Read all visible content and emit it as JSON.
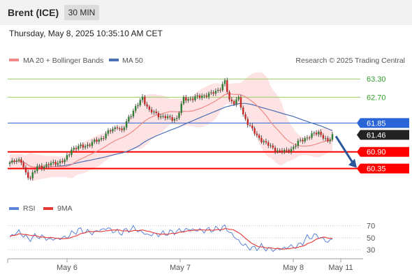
{
  "header": {
    "instrument": "Brent (ICE)",
    "timeframe": "30 MIN",
    "datetime": "Thursday, May 8, 2025 10:35:10 AM CET"
  },
  "legend": {
    "ma20_label": "MA 20 + Bollinger Bands",
    "ma50_label": "MA 50",
    "credit": "Research © 2025 Trading Central",
    "rsi_label": "RSI",
    "rsi_ma_label": "9MA"
  },
  "colors": {
    "bollinger_fill": "#fde3e3",
    "ma20": "#f08a8a",
    "ma50": "#4a6fb5",
    "candle_up": "#2e7d32",
    "candle_down": "#c62828",
    "resistance_level": "#9ccc65",
    "resistance_text": "#33a02c",
    "pivot": "#2965d8",
    "support": "#ff0000",
    "current_tag": "#222222",
    "arrow": "#2b579a",
    "rsi": "#5b84d6",
    "rsi_ma": "#e53935"
  },
  "chart_data": [
    {
      "type": "candlestick",
      "title": "Brent (ICE) 30 MIN",
      "ylim": [
        59.4,
        63.65
      ],
      "x_ticks": [
        "May 6",
        "May 7",
        "May 8",
        "May 11"
      ],
      "grid": false,
      "levels": [
        {
          "value": 63.3,
          "label": "63.30",
          "kind": "resistance"
        },
        {
          "value": 62.7,
          "label": "62.70",
          "kind": "resistance"
        },
        {
          "value": 61.85,
          "label": "61.85",
          "kind": "pivot"
        },
        {
          "value": 60.9,
          "label": "60.90",
          "kind": "support"
        },
        {
          "value": 60.35,
          "label": "60.35",
          "kind": "support"
        }
      ],
      "current_price": 61.46,
      "current_price_label": "61.46",
      "forecast_arrow": {
        "from": 61.46,
        "to": 60.35
      },
      "anchors": [
        {
          "i": 0,
          "c": 60.55
        },
        {
          "i": 2,
          "c": 60.65
        },
        {
          "i": 5,
          "c": 60.55
        },
        {
          "i": 7,
          "c": 60.2
        },
        {
          "i": 9,
          "c": 60.05
        },
        {
          "i": 12,
          "c": 60.4
        },
        {
          "i": 16,
          "c": 60.45
        },
        {
          "i": 20,
          "c": 60.55
        },
        {
          "i": 24,
          "c": 60.6
        },
        {
          "i": 27,
          "c": 61.0
        },
        {
          "i": 30,
          "c": 61.05
        },
        {
          "i": 35,
          "c": 61.15
        },
        {
          "i": 40,
          "c": 61.35
        },
        {
          "i": 44,
          "c": 61.6
        },
        {
          "i": 47,
          "c": 61.75
        },
        {
          "i": 49,
          "c": 61.55
        },
        {
          "i": 52,
          "c": 62.05
        },
        {
          "i": 56,
          "c": 62.45
        },
        {
          "i": 58,
          "c": 62.7
        },
        {
          "i": 61,
          "c": 62.25
        },
        {
          "i": 64,
          "c": 62.15
        },
        {
          "i": 67,
          "c": 62.05
        },
        {
          "i": 70,
          "c": 62.0
        },
        {
          "i": 73,
          "c": 62.0
        },
        {
          "i": 76,
          "c": 62.65
        },
        {
          "i": 80,
          "c": 62.65
        },
        {
          "i": 84,
          "c": 62.75
        },
        {
          "i": 88,
          "c": 62.8
        },
        {
          "i": 92,
          "c": 63.0
        },
        {
          "i": 94,
          "c": 63.2
        },
        {
          "i": 96,
          "c": 62.6
        },
        {
          "i": 98,
          "c": 62.55
        },
        {
          "i": 100,
          "c": 62.65
        },
        {
          "i": 102,
          "c": 62.1
        },
        {
          "i": 105,
          "c": 61.75
        },
        {
          "i": 108,
          "c": 61.4
        },
        {
          "i": 111,
          "c": 61.25
        },
        {
          "i": 114,
          "c": 61.05
        },
        {
          "i": 117,
          "c": 60.95
        },
        {
          "i": 120,
          "c": 60.9
        },
        {
          "i": 123,
          "c": 61.0
        },
        {
          "i": 126,
          "c": 61.2
        },
        {
          "i": 129,
          "c": 61.35
        },
        {
          "i": 132,
          "c": 61.45
        },
        {
          "i": 135,
          "c": 61.55
        },
        {
          "i": 137,
          "c": 61.4
        },
        {
          "i": 139,
          "c": 61.2
        },
        {
          "i": 141,
          "c": 61.46
        }
      ]
    },
    {
      "type": "line",
      "title": "RSI",
      "ylim": [
        22,
        80
      ],
      "y_ticks": [
        "70",
        "50",
        "30"
      ],
      "series": [
        {
          "name": "RSI",
          "key": "rsi"
        },
        {
          "name": "9MA",
          "key": "rsi_ma"
        }
      ],
      "rsi_anchors": [
        {
          "i": 0,
          "v": 52
        },
        {
          "i": 4,
          "v": 60
        },
        {
          "i": 8,
          "v": 48
        },
        {
          "i": 12,
          "v": 53
        },
        {
          "i": 18,
          "v": 47
        },
        {
          "i": 24,
          "v": 50
        },
        {
          "i": 30,
          "v": 63
        },
        {
          "i": 36,
          "v": 58
        },
        {
          "i": 42,
          "v": 66
        },
        {
          "i": 48,
          "v": 58
        },
        {
          "i": 54,
          "v": 66
        },
        {
          "i": 60,
          "v": 55
        },
        {
          "i": 66,
          "v": 56
        },
        {
          "i": 72,
          "v": 60
        },
        {
          "i": 78,
          "v": 64
        },
        {
          "i": 84,
          "v": 62
        },
        {
          "i": 90,
          "v": 64
        },
        {
          "i": 94,
          "v": 68
        },
        {
          "i": 98,
          "v": 52
        },
        {
          "i": 102,
          "v": 38
        },
        {
          "i": 106,
          "v": 32
        },
        {
          "i": 110,
          "v": 35
        },
        {
          "i": 114,
          "v": 30
        },
        {
          "i": 118,
          "v": 31
        },
        {
          "i": 122,
          "v": 35
        },
        {
          "i": 126,
          "v": 36
        },
        {
          "i": 130,
          "v": 50
        },
        {
          "i": 134,
          "v": 54
        },
        {
          "i": 137,
          "v": 48
        },
        {
          "i": 139,
          "v": 42
        },
        {
          "i": 141,
          "v": 50
        }
      ]
    }
  ]
}
